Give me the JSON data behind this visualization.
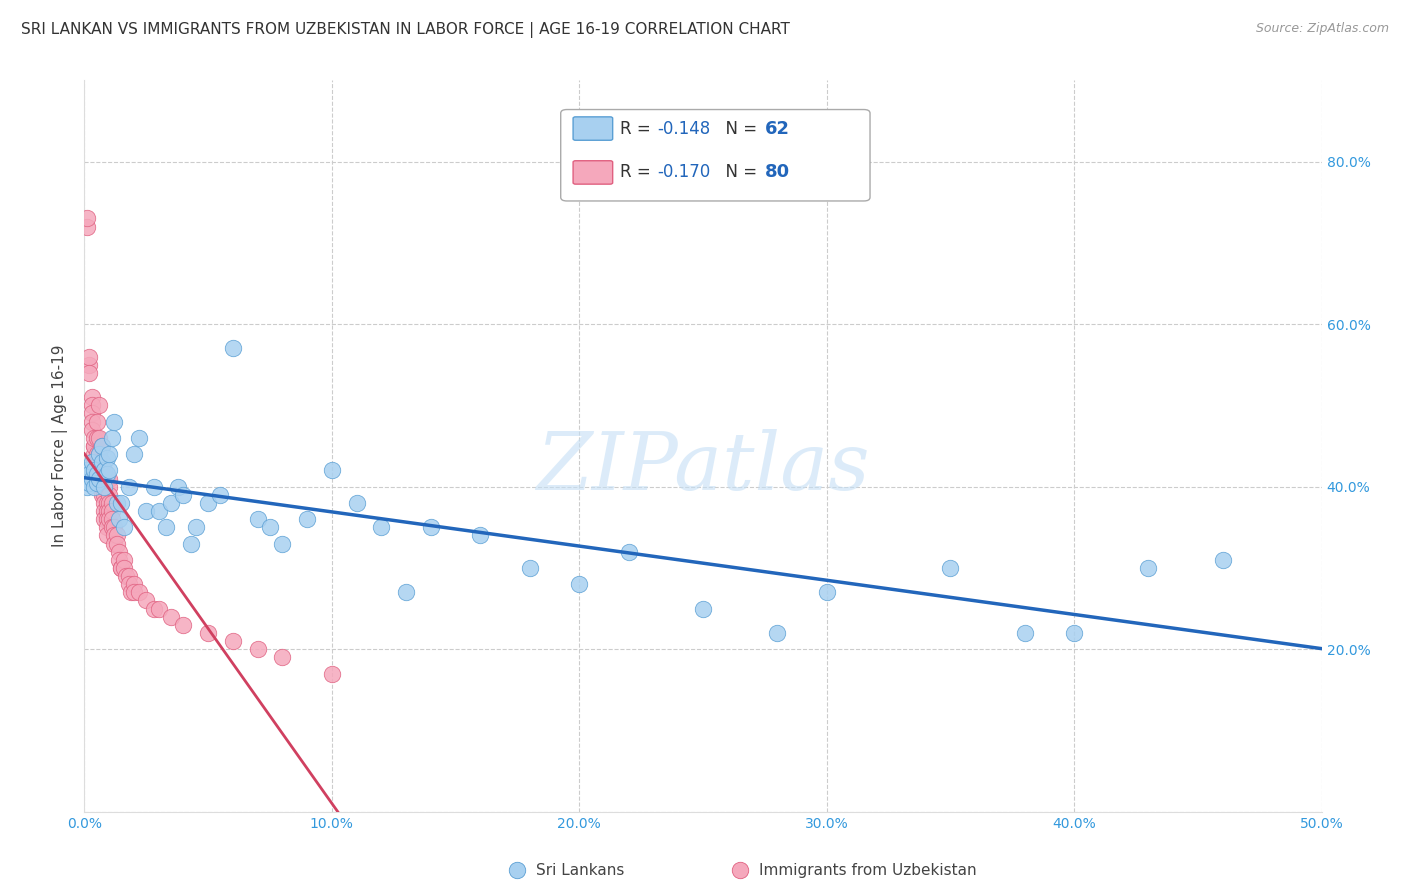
{
  "title": "SRI LANKAN VS IMMIGRANTS FROM UZBEKISTAN IN LABOR FORCE | AGE 16-19 CORRELATION CHART",
  "source": "Source: ZipAtlas.com",
  "ylabel": "In Labor Force | Age 16-19",
  "xlim": [
    0.0,
    0.5
  ],
  "ylim": [
    0.0,
    0.9
  ],
  "xticks": [
    0.0,
    0.1,
    0.2,
    0.3,
    0.4,
    0.5
  ],
  "yticks": [
    0.0,
    0.2,
    0.4,
    0.6,
    0.8
  ],
  "xticklabels": [
    "0.0%",
    "10.0%",
    "20.0%",
    "30.0%",
    "40.0%",
    "50.0%"
  ],
  "yticklabels_right": [
    "",
    "20.0%",
    "40.0%",
    "60.0%",
    "80.0%"
  ],
  "sl_R": -0.148,
  "sl_N": 62,
  "uz_R": -0.17,
  "uz_N": 80,
  "sl_color": "#a8d0f0",
  "sl_edge_color": "#5a9fd4",
  "sl_line_color": "#2266bb",
  "uz_color": "#f5a8bc",
  "uz_edge_color": "#e06080",
  "uz_line_color": "#d04060",
  "sl_label": "Sri Lankans",
  "uz_label": "Immigrants from Uzbekistan",
  "watermark": "ZIPatlas",
  "background_color": "#ffffff",
  "grid_color": "#cccccc",
  "tick_color": "#3399dd",
  "title_fontsize": 11,
  "axis_label_fontsize": 11,
  "tick_fontsize": 10,
  "legend_fontsize": 12,
  "sl_x": [
    0.001,
    0.001,
    0.002,
    0.002,
    0.003,
    0.003,
    0.004,
    0.004,
    0.005,
    0.005,
    0.006,
    0.006,
    0.007,
    0.007,
    0.008,
    0.008,
    0.009,
    0.009,
    0.01,
    0.01,
    0.011,
    0.012,
    0.013,
    0.014,
    0.015,
    0.016,
    0.018,
    0.02,
    0.022,
    0.025,
    0.028,
    0.03,
    0.033,
    0.035,
    0.038,
    0.04,
    0.043,
    0.045,
    0.05,
    0.055,
    0.06,
    0.07,
    0.075,
    0.08,
    0.09,
    0.1,
    0.11,
    0.12,
    0.13,
    0.14,
    0.16,
    0.18,
    0.2,
    0.22,
    0.25,
    0.28,
    0.3,
    0.35,
    0.38,
    0.4,
    0.43,
    0.46
  ],
  "sl_y": [
    0.42,
    0.4,
    0.415,
    0.405,
    0.41,
    0.43,
    0.4,
    0.42,
    0.415,
    0.405,
    0.44,
    0.41,
    0.43,
    0.45,
    0.4,
    0.42,
    0.435,
    0.415,
    0.42,
    0.44,
    0.46,
    0.48,
    0.38,
    0.36,
    0.38,
    0.35,
    0.4,
    0.44,
    0.46,
    0.37,
    0.4,
    0.37,
    0.35,
    0.38,
    0.4,
    0.39,
    0.33,
    0.35,
    0.38,
    0.39,
    0.57,
    0.36,
    0.35,
    0.33,
    0.36,
    0.42,
    0.38,
    0.35,
    0.27,
    0.35,
    0.34,
    0.3,
    0.28,
    0.32,
    0.25,
    0.22,
    0.27,
    0.3,
    0.22,
    0.22,
    0.3,
    0.31
  ],
  "uz_x": [
    0.001,
    0.001,
    0.002,
    0.002,
    0.002,
    0.003,
    0.003,
    0.003,
    0.003,
    0.003,
    0.004,
    0.004,
    0.004,
    0.004,
    0.004,
    0.005,
    0.005,
    0.005,
    0.005,
    0.005,
    0.005,
    0.006,
    0.006,
    0.006,
    0.006,
    0.007,
    0.007,
    0.007,
    0.007,
    0.007,
    0.007,
    0.008,
    0.008,
    0.008,
    0.008,
    0.008,
    0.009,
    0.009,
    0.009,
    0.009,
    0.009,
    0.009,
    0.01,
    0.01,
    0.01,
    0.01,
    0.01,
    0.01,
    0.011,
    0.011,
    0.011,
    0.011,
    0.012,
    0.012,
    0.012,
    0.013,
    0.013,
    0.014,
    0.014,
    0.015,
    0.015,
    0.016,
    0.016,
    0.017,
    0.018,
    0.018,
    0.019,
    0.02,
    0.02,
    0.022,
    0.025,
    0.028,
    0.03,
    0.035,
    0.04,
    0.05,
    0.06,
    0.07,
    0.08,
    0.1
  ],
  "uz_y": [
    0.72,
    0.73,
    0.55,
    0.56,
    0.54,
    0.51,
    0.5,
    0.49,
    0.48,
    0.47,
    0.45,
    0.44,
    0.45,
    0.43,
    0.46,
    0.48,
    0.46,
    0.44,
    0.43,
    0.42,
    0.41,
    0.5,
    0.46,
    0.44,
    0.43,
    0.45,
    0.43,
    0.42,
    0.41,
    0.4,
    0.39,
    0.4,
    0.39,
    0.38,
    0.37,
    0.36,
    0.41,
    0.38,
    0.37,
    0.36,
    0.35,
    0.34,
    0.41,
    0.4,
    0.39,
    0.38,
    0.37,
    0.36,
    0.38,
    0.37,
    0.36,
    0.35,
    0.35,
    0.34,
    0.33,
    0.34,
    0.33,
    0.32,
    0.31,
    0.3,
    0.3,
    0.31,
    0.3,
    0.29,
    0.29,
    0.28,
    0.27,
    0.28,
    0.27,
    0.27,
    0.26,
    0.25,
    0.25,
    0.24,
    0.23,
    0.22,
    0.21,
    0.2,
    0.19,
    0.17
  ]
}
